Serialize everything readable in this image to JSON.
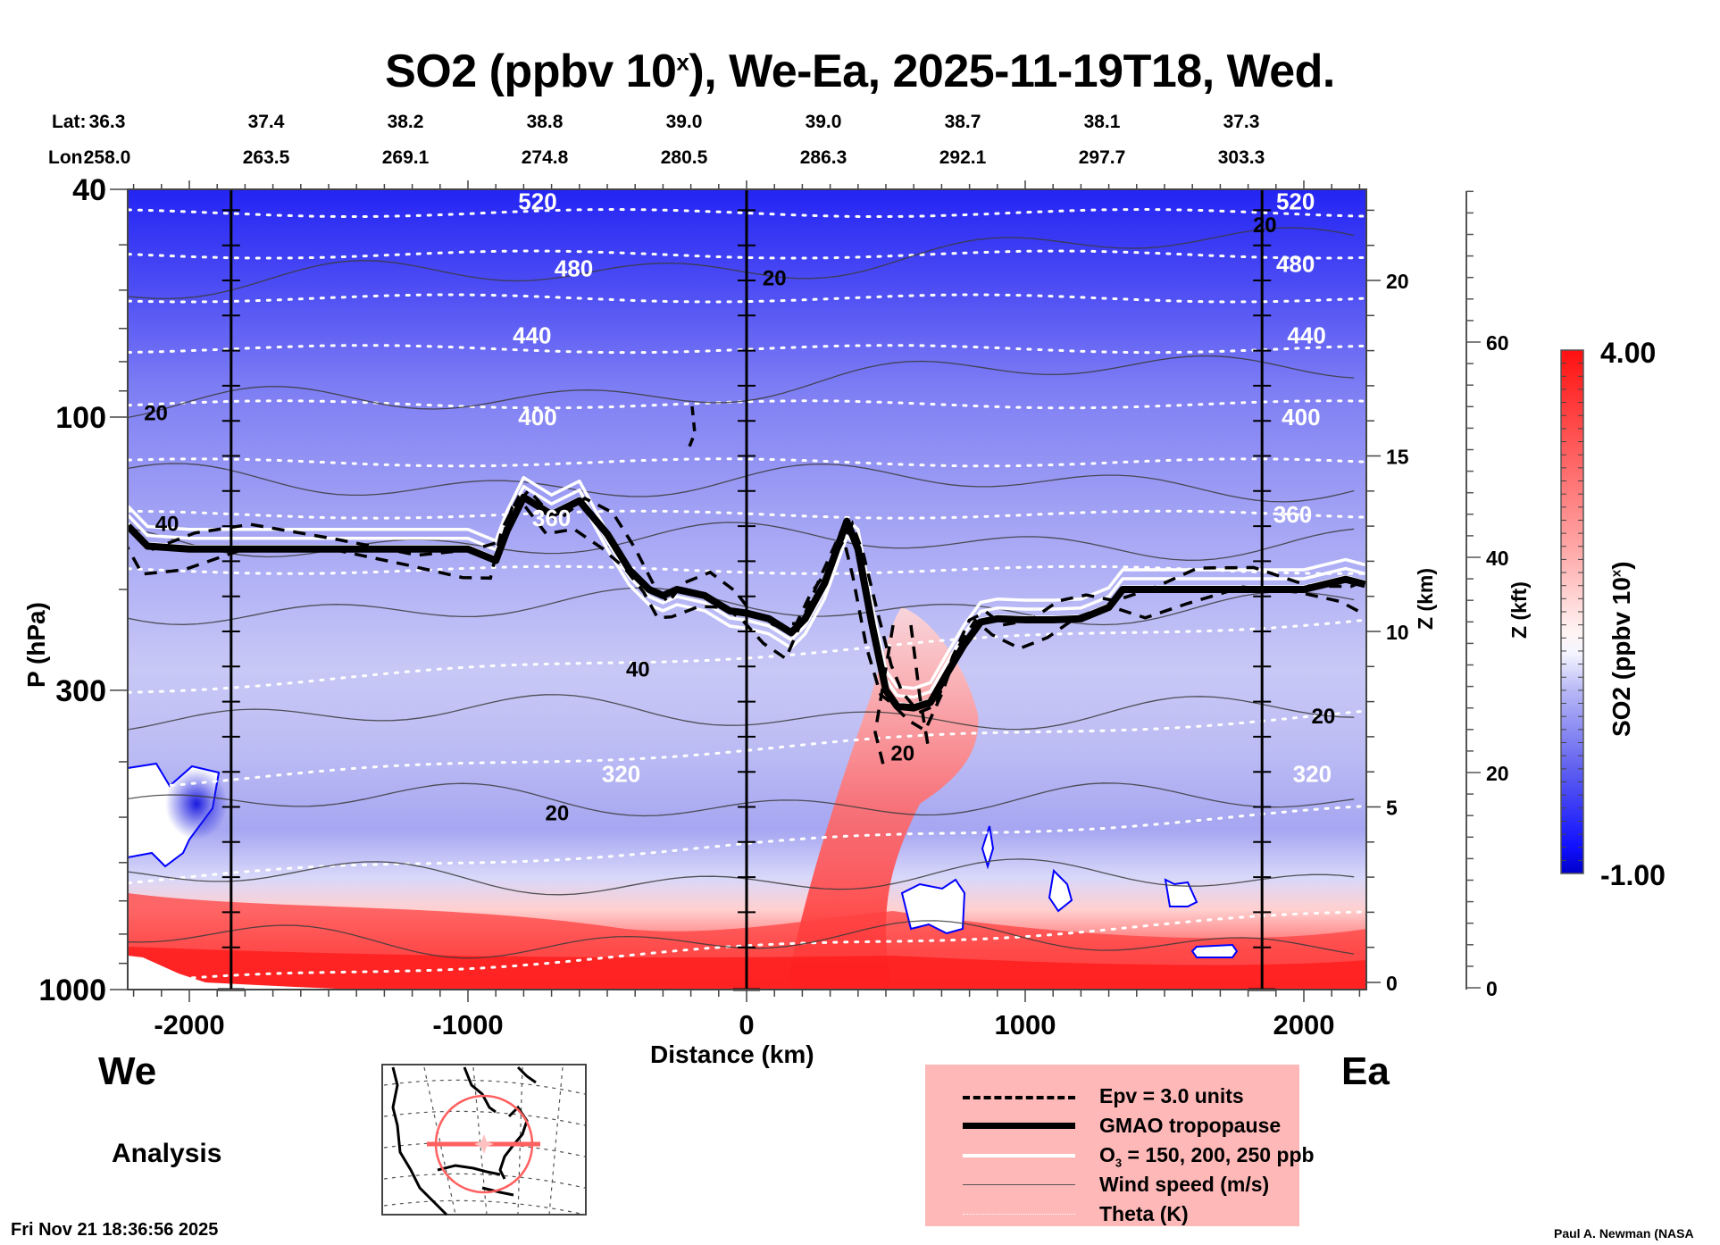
{
  "header": {
    "title_main": "SO2 (ppbv 10",
    "title_sup": "x",
    "title_rest": "), We-Ea, 2025-11-19T18, Wed."
  },
  "latlon": {
    "lat_label": "Lat:",
    "lon_label": "Lon:",
    "lat": [
      "36.3",
      "37.4",
      "38.2",
      "38.8",
      "39.0",
      "39.0",
      "38.7",
      "38.1",
      "37.3"
    ],
    "lon": [
      "258.0",
      "263.5",
      "269.1",
      "274.8",
      "280.5",
      "286.3",
      "292.1",
      "297.7",
      "303.3"
    ]
  },
  "labels": {
    "west": "We",
    "east": "Ea",
    "analysis": "Analysis",
    "timestamp": "Fri Nov 21 18:36:56 2025",
    "credit": "Paul A. Newman (NASA"
  },
  "legend": {
    "items": [
      {
        "label": "Epv = 3.0 units",
        "style": "dashed"
      },
      {
        "label": "GMAO tropopause",
        "style": "thick"
      },
      {
        "label_main": "O",
        "label_sub": "3",
        "label_rest": " = 150, 200, 250 ppb",
        "style": "white"
      },
      {
        "label": "Wind speed (m/s)",
        "style": "thin"
      },
      {
        "label": "Theta (K)",
        "style": "dotted"
      }
    ]
  },
  "colorbar": {
    "label_main": "SO2 (ppbv 10",
    "label_sup": "x",
    "label_end": ")",
    "max_label": "4.00",
    "min_label": "-1.00",
    "min": -1.0,
    "max": 4.0,
    "low_color": "#0000d0",
    "mid_color": "#ffffff",
    "high_color": "#ff0000"
  },
  "chart_data": {
    "type": "heatmap",
    "title": "SO2 (ppbv 10^x), We-Ea, 2025-11-19T18, Wed.",
    "xlabel": "Distance (km)",
    "ylabel": "P (hPa)",
    "ylabel_right": "Z (km)",
    "ylabel_right2": "Z (kft)",
    "xlim": [
      -2220,
      2220
    ],
    "ylim": [
      1000,
      40
    ],
    "yscale": "log",
    "x_ticks": [
      -2000,
      -1000,
      0,
      1000,
      2000
    ],
    "x_tick_labels": [
      "-2000",
      "-1000",
      "0",
      "1000",
      "2000"
    ],
    "y_ticks": [
      40,
      100,
      300,
      1000
    ],
    "y_tick_labels": [
      "40",
      "100",
      "300",
      "1000"
    ],
    "z_km_ticks": [
      0,
      5,
      10,
      15,
      20
    ],
    "z_km_labels": [
      "0",
      "5",
      "10",
      "15",
      "20"
    ],
    "z_kft_ticks": [
      0,
      20,
      40,
      60
    ],
    "z_kft_labels": [
      "0",
      "20",
      "40",
      "60"
    ],
    "vertical_markers_km": [
      -1850,
      0,
      1850
    ],
    "theta_labels": [
      {
        "text": "520",
        "x": -750,
        "p": 42
      },
      {
        "text": "480",
        "x": -620,
        "p": 55
      },
      {
        "text": "440",
        "x": -770,
        "p": 72
      },
      {
        "text": "400",
        "x": -750,
        "p": 100
      },
      {
        "text": "360",
        "x": -700,
        "p": 150
      },
      {
        "text": "320",
        "x": -450,
        "p": 420
      },
      {
        "text": "520",
        "x": 1970,
        "p": 42
      },
      {
        "text": "480",
        "x": 1970,
        "p": 54
      },
      {
        "text": "440",
        "x": 2010,
        "p": 72
      },
      {
        "text": "400",
        "x": 1990,
        "p": 100
      },
      {
        "text": "360",
        "x": 1960,
        "p": 148
      },
      {
        "text": "320",
        "x": 2030,
        "p": 420
      }
    ],
    "wind_labels": [
      {
        "text": "20",
        "x": -2120,
        "p": 98
      },
      {
        "text": "40",
        "x": -2080,
        "p": 153
      },
      {
        "text": "40",
        "x": -390,
        "p": 275
      },
      {
        "text": "20",
        "x": -680,
        "p": 490
      },
      {
        "text": "20",
        "x": 100,
        "p": 57
      },
      {
        "text": "20",
        "x": 560,
        "p": 385
      },
      {
        "text": "20",
        "x": 2070,
        "p": 332
      },
      {
        "text": "20",
        "x": 1860,
        "p": 46
      }
    ],
    "tropopause": {
      "x": [
        -2220,
        -2150,
        -2000,
        -1800,
        -1500,
        -1200,
        -1000,
        -900,
        -860,
        -800,
        -700,
        -600,
        -500,
        -420,
        -350,
        -300,
        -250,
        -150,
        -60,
        0,
        80,
        160,
        210,
        280,
        360,
        400,
        450,
        500,
        540,
        600,
        660,
        720,
        780,
        840,
        900,
        1000,
        1100,
        1200,
        1300,
        1350,
        1450,
        1600,
        1800,
        2000,
        2150,
        2220
      ],
      "p": [
        155,
        168,
        170,
        170,
        170,
        170,
        170,
        178,
        158,
        138,
        148,
        140,
        160,
        185,
        200,
        205,
        200,
        205,
        218,
        220,
        225,
        238,
        225,
        195,
        152,
        170,
        230,
        300,
        320,
        322,
        315,
        280,
        250,
        228,
        225,
        226,
        226,
        225,
        215,
        200,
        200,
        200,
        200,
        200,
        192,
        196
      ]
    },
    "series_descriptions": [
      "SO2 log10 mixing ratio (ppbv): strongly negative (blue, ~-1) in upper levels above ~100 hPa, increasing toward ~0 near 200-300 hPa",
      "Positive SO2 (red, up to ~4) in boundary layer below ~800 hPa across the section",
      "Red plume rising from surface near x=200-800 km up to ~250 hPa"
    ]
  }
}
